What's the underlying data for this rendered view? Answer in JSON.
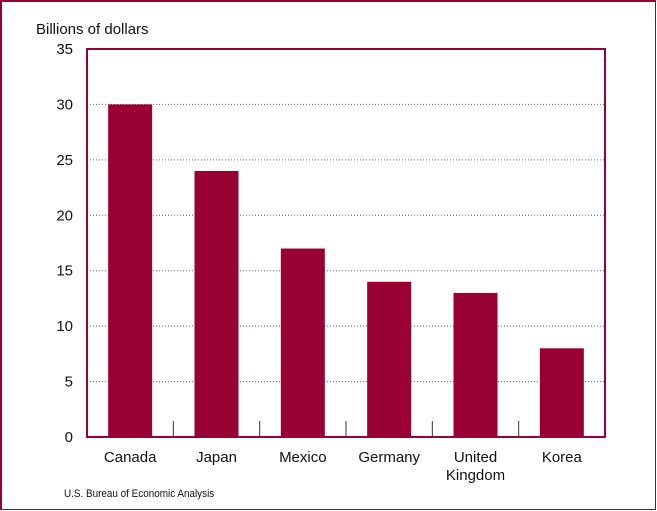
{
  "chart_data": {
    "type": "bar",
    "ylabel": "Billions of dollars",
    "categories": [
      "Canada",
      "Japan",
      "Mexico",
      "Germany",
      "United Kingdom",
      "Korea"
    ],
    "category_lines": [
      [
        "Canada"
      ],
      [
        "Japan"
      ],
      [
        "Mexico"
      ],
      [
        "Germany"
      ],
      [
        "United",
        "Kingdom"
      ],
      [
        "Korea"
      ]
    ],
    "values": [
      30,
      24,
      17,
      14,
      13,
      8
    ],
    "ylim": [
      0,
      35
    ],
    "yticks": [
      0,
      5,
      10,
      15,
      20,
      25,
      30,
      35
    ],
    "grid": true,
    "colors": {
      "bar": "#990033",
      "axis": "#990033",
      "grid": "#666666"
    }
  },
  "source": "U.S. Bureau of Economic Analysis"
}
